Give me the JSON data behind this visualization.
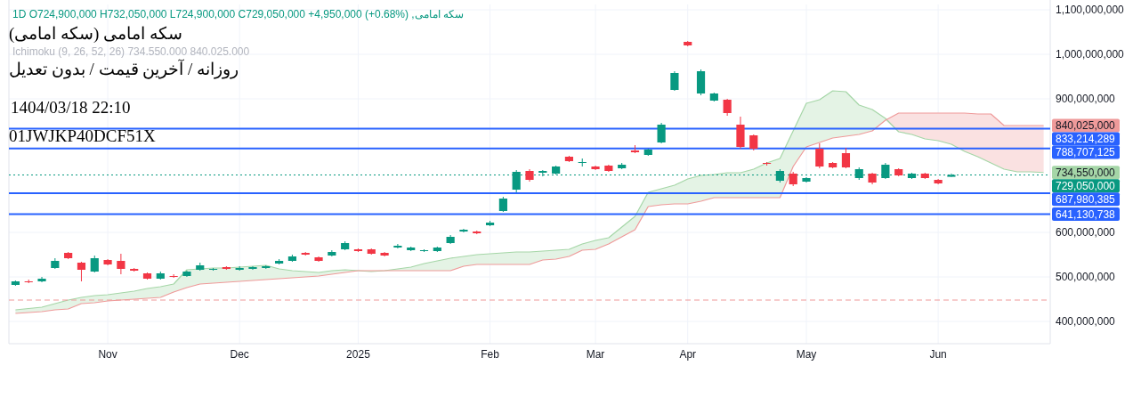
{
  "chart_data": {
    "type": "candlestick",
    "title": "سکه امامی (سکه امامی)",
    "subtitle": "روزانه / آخرین قیمت / بدون تعدیل",
    "categories": [
      null,
      null,
      null,
      null,
      null,
      null,
      null,
      "Nov",
      null,
      null,
      null,
      null,
      null,
      null,
      null,
      null,
      null,
      "Dec",
      null,
      null,
      null,
      null,
      null,
      null,
      null,
      null,
      "2025",
      null,
      null,
      null,
      null,
      null,
      null,
      null,
      null,
      null,
      "Feb",
      null,
      null,
      null,
      null,
      null,
      null,
      null,
      "Mar",
      null,
      null,
      null,
      null,
      null,
      null,
      "Apr",
      null,
      null,
      null,
      null,
      null,
      null,
      null,
      null,
      "May",
      null,
      null,
      null,
      null,
      null,
      null,
      null,
      null,
      null,
      "Jun",
      null,
      null,
      null,
      null,
      null,
      null,
      null,
      null
    ],
    "ohlc": [
      [
        482000000.0,
        492000000.0,
        480000000.0,
        490000000.0
      ],
      [
        490000000.0,
        494000000.0,
        486000000.0,
        488000000.0
      ],
      [
        490000000.0,
        500000000.0,
        488000000.0,
        496000000.0
      ],
      [
        520000000.0,
        542000000.0,
        518000000.0,
        536000000.0
      ],
      [
        554000000.0,
        556000000.0,
        540000000.0,
        542000000.0
      ],
      [
        532000000.0,
        534000000.0,
        490000000.0,
        516000000.0
      ],
      [
        512000000.0,
        548000000.0,
        510000000.0,
        542000000.0
      ],
      [
        538000000.0,
        540000000.0,
        526000000.0,
        528000000.0
      ],
      [
        536000000.0,
        552000000.0,
        506000000.0,
        518000000.0
      ],
      [
        518000000.0,
        520000000.0,
        512000000.0,
        514000000.0
      ],
      [
        508000000.0,
        510000000.0,
        494000000.0,
        496000000.0
      ],
      [
        496000000.0,
        512000000.0,
        494000000.0,
        508000000.0
      ],
      [
        502000000.0,
        506000000.0,
        498000000.0,
        500000000.0
      ],
      [
        502000000.0,
        514000000.0,
        500000000.0,
        512000000.0
      ],
      [
        516000000.0,
        532000000.0,
        514000000.0,
        526000000.0
      ],
      [
        516000000.0,
        520000000.0,
        514000000.0,
        518000000.0
      ],
      [
        522000000.0,
        524000000.0,
        516000000.0,
        518000000.0
      ],
      [
        516000000.0,
        524000000.0,
        514000000.0,
        520000000.0
      ],
      [
        518000000.0,
        524000000.0,
        516000000.0,
        522000000.0
      ],
      [
        520000000.0,
        526000000.0,
        518000000.0,
        524000000.0
      ],
      [
        530000000.0,
        540000000.0,
        528000000.0,
        536000000.0
      ],
      [
        536000000.0,
        550000000.0,
        534000000.0,
        546000000.0
      ],
      [
        554000000.0,
        556000000.0,
        548000000.0,
        550000000.0
      ],
      [
        544000000.0,
        546000000.0,
        534000000.0,
        536000000.0
      ],
      [
        548000000.0,
        560000000.0,
        546000000.0,
        556000000.0
      ],
      [
        562000000.0,
        580000000.0,
        560000000.0,
        576000000.0
      ],
      [
        562000000.0,
        564000000.0,
        556000000.0,
        558000000.0
      ],
      [
        562000000.0,
        564000000.0,
        550000000.0,
        552000000.0
      ],
      [
        554000000.0,
        556000000.0,
        546000000.0,
        548000000.0
      ],
      [
        566000000.0,
        574000000.0,
        564000000.0,
        570000000.0
      ],
      [
        560000000.0,
        568000000.0,
        558000000.0,
        566000000.0
      ],
      [
        558000000.0,
        562000000.0,
        556000000.0,
        560000000.0
      ],
      [
        558000000.0,
        568000000.0,
        556000000.0,
        566000000.0
      ],
      [
        576000000.0,
        594000000.0,
        574000000.0,
        590000000.0
      ],
      [
        602000000.0,
        608000000.0,
        600000000.0,
        606000000.0
      ],
      [
        602000000.0,
        604000000.0,
        596000000.0,
        598000000.0
      ],
      [
        616000000.0,
        626000000.0,
        614000000.0,
        622000000.0
      ],
      [
        648000000.0,
        680000000.0,
        646000000.0,
        676000000.0
      ],
      [
        696000000.0,
        740000000.0,
        690000000.0,
        736000000.0
      ],
      [
        738000000.0,
        742000000.0,
        714000000.0,
        718000000.0
      ],
      [
        734000000.0,
        740000000.0,
        726000000.0,
        738000000.0
      ],
      [
        732000000.0,
        750000000.0,
        730000000.0,
        748000000.0
      ],
      [
        770000000.0,
        772000000.0,
        758000000.0,
        760000000.0
      ],
      [
        756000000.0,
        766000000.0,
        748000000.0,
        758000000.0
      ],
      [
        748000000.0,
        750000000.0,
        740000000.0,
        742000000.0
      ],
      [
        750000000.0,
        752000000.0,
        736000000.0,
        738000000.0
      ],
      [
        744000000.0,
        756000000.0,
        742000000.0,
        752000000.0
      ],
      [
        784000000.0,
        796000000.0,
        778000000.0,
        780000000.0
      ],
      [
        774000000.0,
        788000000.0,
        772000000.0,
        786000000.0
      ],
      [
        802000000.0,
        846000000.0,
        800000000.0,
        842000000.0
      ],
      [
        920000000.0,
        962000000.0,
        918000000.0,
        958000000.0
      ],
      [
        1028000000.0,
        1030000000.0,
        1018000000.0,
        1020000000.0
      ],
      [
        912000000.0,
        966000000.0,
        908000000.0,
        962000000.0
      ],
      [
        896000000.0,
        914000000.0,
        894000000.0,
        912000000.0
      ],
      [
        898000000.0,
        900000000.0,
        862000000.0,
        868000000.0
      ],
      [
        842000000.0,
        860000000.0,
        788000000.0,
        792000000.0
      ],
      [
        818000000.0,
        820000000.0,
        784000000.0,
        788000000.0
      ],
      [
        756000000.0,
        758000000.0,
        750000000.0,
        754000000.0
      ],
      [
        716000000.0,
        742000000.0,
        712000000.0,
        738000000.0
      ],
      [
        732000000.0,
        736000000.0,
        704000000.0,
        708000000.0
      ],
      [
        714000000.0,
        724000000.0,
        712000000.0,
        722000000.0
      ],
      [
        788000000.0,
        800000000.0,
        744000000.0,
        748000000.0
      ],
      [
        756000000.0,
        758000000.0,
        744000000.0,
        746000000.0
      ],
      [
        778000000.0,
        790000000.0,
        744000000.0,
        746000000.0
      ],
      [
        722000000.0,
        746000000.0,
        718000000.0,
        742000000.0
      ],
      [
        732000000.0,
        734000000.0,
        708000000.0,
        712000000.0
      ],
      [
        722000000.0,
        756000000.0,
        720000000.0,
        752000000.0
      ],
      [
        742000000.0,
        744000000.0,
        726000000.0,
        728000000.0
      ],
      [
        722000000.0,
        734000000.0,
        720000000.0,
        732000000.0
      ],
      [
        732000000.0,
        734000000.0,
        720000000.0,
        722000000.0
      ],
      [
        718000000.0,
        720000000.0,
        708000000.0,
        710000000.0
      ],
      [
        724900000,
        732050000,
        724900000,
        729050000
      ],
      null,
      null,
      null,
      null,
      null,
      null,
      null
    ],
    "colors": [
      "#089981",
      "#f23645",
      "#089981",
      "#089981",
      "#f23645",
      "#f23645",
      "#089981",
      "#f23645",
      "#f23645",
      "#f23645",
      "#f23645",
      "#089981",
      "#f23645",
      "#089981",
      "#089981",
      "#089981",
      "#f23645",
      "#089981",
      "#089981",
      "#089981",
      "#089981",
      "#089981",
      "#f23645",
      "#f23645",
      "#089981",
      "#089981",
      "#f23645",
      "#f23645",
      "#f23645",
      "#089981",
      "#089981",
      "#089981",
      "#089981",
      "#089981",
      "#089981",
      "#f23645",
      "#089981",
      "#089981",
      "#089981",
      "#f23645",
      "#089981",
      "#089981",
      "#f23645",
      "#089981",
      "#f23645",
      "#f23645",
      "#089981",
      "#f23645",
      "#089981",
      "#089981",
      "#089981",
      "#f23645",
      "#089981",
      "#089981",
      "#f23645",
      "#f23645",
      "#f23645",
      "#f23645",
      "#089981",
      "#f23645",
      "#089981",
      "#f23645",
      "#f23645",
      "#f23645",
      "#089981",
      "#f23645",
      "#089981",
      "#f23645",
      "#089981",
      "#f23645",
      "#f23645",
      "#089981",
      null,
      null,
      null,
      null,
      null,
      null,
      null
    ],
    "series": [
      {
        "type": "line",
        "color": "#a5d6a7",
        "lower": [
          418000000.0,
          420000000.0,
          422000000.0,
          426000000.0,
          428000000.0,
          440000000.0,
          442000000.0,
          446000000.0,
          448000000.0,
          450000000.0,
          452000000.0,
          454000000.0,
          466000000.0,
          476000000.0,
          484000000.0,
          486000000.0,
          488000000.0,
          490000000.0,
          492000000.0,
          494000000.0,
          496000000.0,
          498000000.0,
          500000000.0,
          502000000.0,
          506000000.0,
          510000000.0,
          514000000.0,
          512000000.0,
          514000000.0,
          514000000.0,
          514000000.0,
          514000000.0,
          514000000.0,
          514000000.0,
          524000000.0,
          528000000.0,
          528000000.0,
          528000000.0,
          528000000.0,
          528000000.0,
          538000000.0,
          540000000.0,
          546000000.0,
          560000000.0,
          562000000.0,
          574000000.0,
          590000000.0,
          606000000.0,
          658000000.0,
          662000000.0,
          664000000.0,
          664000000.0,
          670000000.0,
          678000000.0,
          678000000.0,
          678000000.0,
          678000000.0,
          678000000.0,
          678000000.0,
          748000000.0,
          792000000.0,
          802000000.0,
          812000000.0,
          816000000.0,
          820000000.0,
          828000000.0,
          852000000.0,
          826000000.0,
          820000000.0,
          810000000.0,
          806000000.0,
          798000000.0,
          782000000.0,
          770000000.0,
          756000000.0,
          742000000.0,
          736000000.0,
          736000000.0,
          734550000
        ],
        "upper": [
          426000000.0,
          429000000.0,
          432000000.0,
          440000000.0,
          448000000.0,
          454000000.0,
          458000000.0,
          460000000.0,
          464000000.0,
          468000000.0,
          474000000.0,
          478000000.0,
          484000000.0,
          516000000.0,
          518000000.0,
          520000000.0,
          520000000.0,
          522000000.0,
          524000000.0,
          526000000.0,
          518000000.0,
          514000000.0,
          512000000.0,
          510000000.0,
          514000000.0,
          516000000.0,
          514000000.0,
          512000000.0,
          514000000.0,
          518000000.0,
          522000000.0,
          530000000.0,
          536000000.0,
          542000000.0,
          546000000.0,
          550000000.0,
          552000000.0,
          554000000.0,
          556000000.0,
          556000000.0,
          558000000.0,
          560000000.0,
          562000000.0,
          574000000.0,
          582000000.0,
          588000000.0,
          612000000.0,
          636000000.0,
          690000000.0,
          698000000.0,
          706000000.0,
          720000000.0,
          728000000.0,
          730000000.0,
          734000000.0,
          734000000.0,
          742000000.0,
          756000000.0,
          766000000.0,
          828000000.0,
          890000000.0,
          898000000.0,
          918000000.0,
          916000000.0,
          886000000.0,
          876000000.0,
          856000000.0,
          826000000.0,
          820000000.0,
          810000000.0,
          806000000.0,
          798000000.0,
          782000000.0,
          770000000.0,
          756000000.0,
          742000000.0,
          736000000.0,
          736000000.0,
          734550000
        ],
        "values": [
          426000000.0,
          429000000.0,
          432000000.0,
          440000000.0,
          448000000.0,
          454000000.0,
          458000000.0,
          460000000.0,
          464000000.0,
          468000000.0,
          474000000.0,
          478000000.0,
          484000000.0,
          516000000.0,
          518000000.0,
          520000000.0,
          520000000.0,
          522000000.0,
          524000000.0,
          526000000.0,
          518000000.0,
          514000000.0,
          512000000.0,
          510000000.0,
          514000000.0,
          516000000.0,
          514000000.0,
          512000000.0,
          514000000.0,
          518000000.0,
          522000000.0,
          530000000.0,
          536000000.0,
          542000000.0,
          546000000.0,
          550000000.0,
          552000000.0,
          554000000.0,
          556000000.0,
          556000000.0,
          558000000.0,
          560000000.0,
          562000000.0,
          574000000.0,
          582000000.0,
          588000000.0,
          612000000.0,
          636000000.0,
          690000000.0,
          698000000.0,
          706000000.0,
          720000000.0,
          728000000.0,
          730000000.0,
          734000000.0,
          734000000.0,
          742000000.0,
          756000000.0,
          766000000.0,
          828000000.0,
          890000000.0,
          898000000.0,
          918000000.0,
          916000000.0,
          886000000.0,
          876000000.0,
          856000000.0,
          826000000.0,
          820000000.0,
          810000000.0,
          806000000.0,
          798000000.0,
          782000000.0,
          770000000.0,
          756000000.0,
          742000000.0,
          736000000.0,
          736000000.0,
          734550000
        ],
        "value_labels": [
          null,
          null,
          null,
          null,
          null,
          null,
          null,
          null,
          null,
          null,
          null,
          null,
          null,
          null,
          null,
          null,
          null,
          null,
          null,
          null,
          null,
          null,
          null,
          null,
          null,
          null,
          null,
          null,
          null,
          null,
          null,
          null,
          null,
          null,
          null,
          null,
          null,
          null,
          null,
          null,
          null,
          null,
          null,
          null,
          null,
          null,
          null,
          null,
          null,
          null,
          null,
          null,
          null,
          null,
          null,
          null,
          null,
          null,
          null,
          null,
          null,
          null,
          null,
          null,
          null,
          null,
          null,
          null,
          null,
          null,
          null,
          null,
          null,
          null,
          null,
          null,
          null,
          null,
          "734,550,000"
        ]
      },
      {
        "type": "line",
        "color": "#ef9a9a",
        "lower": [
          418000000.0,
          420000000.0,
          422000000.0,
          426000000.0,
          428000000.0,
          440000000.0,
          442000000.0,
          446000000.0,
          448000000.0,
          450000000.0,
          452000000.0,
          454000000.0,
          466000000.0,
          476000000.0,
          484000000.0,
          486000000.0,
          488000000.0,
          490000000.0,
          492000000.0,
          494000000.0,
          496000000.0,
          498000000.0,
          500000000.0,
          502000000.0,
          506000000.0,
          510000000.0,
          514000000.0,
          512000000.0,
          514000000.0,
          514000000.0,
          514000000.0,
          514000000.0,
          514000000.0,
          514000000.0,
          524000000.0,
          528000000.0,
          528000000.0,
          528000000.0,
          528000000.0,
          528000000.0,
          538000000.0,
          540000000.0,
          546000000.0,
          560000000.0,
          562000000.0,
          574000000.0,
          590000000.0,
          606000000.0,
          658000000.0,
          662000000.0,
          664000000.0,
          664000000.0,
          670000000.0,
          678000000.0,
          678000000.0,
          678000000.0,
          678000000.0,
          678000000.0,
          678000000.0,
          748000000.0,
          792000000.0,
          802000000.0,
          812000000.0,
          816000000.0,
          820000000.0,
          828000000.0,
          852000000.0,
          826000000.0,
          820000000.0,
          810000000.0,
          806000000.0,
          798000000.0,
          782000000.0,
          770000000.0,
          756000000.0,
          742000000.0,
          736000000.0,
          736000000.0,
          734550000
        ],
        "upper": [
          418000000.0,
          420000000.0,
          422000000.0,
          426000000.0,
          428000000.0,
          440000000.0,
          442000000.0,
          446000000.0,
          448000000.0,
          450000000.0,
          452000000.0,
          454000000.0,
          466000000.0,
          476000000.0,
          484000000.0,
          486000000.0,
          488000000.0,
          490000000.0,
          492000000.0,
          494000000.0,
          496000000.0,
          498000000.0,
          500000000.0,
          502000000.0,
          506000000.0,
          510000000.0,
          514000000.0,
          514000000.0,
          514000000.0,
          514000000.0,
          514000000.0,
          514000000.0,
          514000000.0,
          514000000.0,
          524000000.0,
          528000000.0,
          528000000.0,
          528000000.0,
          528000000.0,
          528000000.0,
          538000000.0,
          540000000.0,
          546000000.0,
          560000000.0,
          562000000.0,
          574000000.0,
          590000000.0,
          606000000.0,
          658000000.0,
          662000000.0,
          664000000.0,
          664000000.0,
          670000000.0,
          678000000.0,
          678000000.0,
          678000000.0,
          678000000.0,
          678000000.0,
          678000000.0,
          748000000.0,
          792000000.0,
          802000000.0,
          812000000.0,
          816000000.0,
          820000000.0,
          828000000.0,
          852000000.0,
          868000000.0,
          868000000.0,
          868000000.0,
          868000000.0,
          868000000.0,
          868000000.0,
          866000000.0,
          866000000.0,
          840025000,
          840025000,
          840025000,
          840025000
        ],
        "values": [
          418000000.0,
          420000000.0,
          422000000.0,
          426000000.0,
          428000000.0,
          440000000.0,
          442000000.0,
          446000000.0,
          448000000.0,
          450000000.0,
          452000000.0,
          454000000.0,
          466000000.0,
          476000000.0,
          484000000.0,
          486000000.0,
          488000000.0,
          490000000.0,
          492000000.0,
          494000000.0,
          496000000.0,
          498000000.0,
          500000000.0,
          502000000.0,
          506000000.0,
          510000000.0,
          514000000.0,
          514000000.0,
          514000000.0,
          514000000.0,
          514000000.0,
          514000000.0,
          514000000.0,
          514000000.0,
          524000000.0,
          528000000.0,
          528000000.0,
          528000000.0,
          528000000.0,
          528000000.0,
          538000000.0,
          540000000.0,
          546000000.0,
          560000000.0,
          562000000.0,
          574000000.0,
          590000000.0,
          606000000.0,
          658000000.0,
          662000000.0,
          664000000.0,
          664000000.0,
          670000000.0,
          678000000.0,
          678000000.0,
          678000000.0,
          678000000.0,
          678000000.0,
          678000000.0,
          748000000.0,
          792000000.0,
          802000000.0,
          812000000.0,
          816000000.0,
          820000000.0,
          828000000.0,
          852000000.0,
          868000000.0,
          868000000.0,
          868000000.0,
          868000000.0,
          868000000.0,
          868000000.0,
          866000000.0,
          866000000.0,
          840025000,
          840025000,
          840025000,
          840025000
        ],
        "value_labels": [
          null,
          null,
          null,
          null,
          null,
          null,
          null,
          null,
          null,
          null,
          null,
          null,
          null,
          null,
          null,
          null,
          null,
          null,
          null,
          null,
          null,
          null,
          null,
          null,
          null,
          null,
          null,
          null,
          null,
          null,
          null,
          null,
          null,
          null,
          null,
          null,
          null,
          null,
          null,
          null,
          null,
          null,
          null,
          null,
          null,
          null,
          null,
          null,
          null,
          null,
          null,
          null,
          null,
          null,
          null,
          null,
          null,
          null,
          null,
          null,
          null,
          null,
          null,
          null,
          null,
          null,
          null,
          null,
          null,
          null,
          null,
          null,
          null,
          null,
          null,
          null,
          null,
          null,
          "840,025,000"
        ]
      }
    ],
    "ref_lines": [
      {
        "axis": "y",
        "value": 833214289,
        "label": "833,214,289",
        "color": "#2962ff",
        "line_style": "solid"
      },
      {
        "axis": "y",
        "value": 788707125,
        "label": "788,707,125",
        "color": "#2962ff",
        "line_style": "solid"
      },
      {
        "axis": "y",
        "value": 687980385,
        "label": "687,980,385",
        "color": "#2962ff",
        "line_style": "solid"
      },
      {
        "axis": "y",
        "value": 641130738,
        "label": "641,130,738",
        "color": "#2962ff",
        "line_style": "solid"
      },
      {
        "axis": "y",
        "value": 729050000,
        "label": "729,050,000",
        "color": "#089981",
        "line_style": "dotted"
      },
      {
        "axis": "y",
        "value": 448000000,
        "color": "#ef9a9a",
        "line_style": "dashed"
      }
    ],
    "annotations": [
      "سکه امامی, 1D  O724,900,000  H732,050,000  L724,900,000  C729,050,000  +4,950,000 (+0.68%)",
      "Ichimoku (9, 26, 52, 26)  734.550.000  840.025.000",
      "1404/03/18 22:10",
      "01JWJKP40DCF51X"
    ],
    "ylim": [
      350000000.0,
      1112000000.0
    ],
    "yticks": [
      {
        "value": 400000000.0,
        "label": "400,000,000"
      },
      {
        "value": 500000000.0,
        "label": "500,000,000"
      },
      {
        "value": 600000000.0,
        "label": "600,000,000"
      },
      {
        "value": 900000000.0,
        "label": "900,000,000"
      },
      {
        "value": 1000000000.0,
        "label": "1,000,000,000"
      },
      {
        "value": 1100000000.0,
        "label": "1,100,000,000"
      }
    ],
    "grid": true
  }
}
